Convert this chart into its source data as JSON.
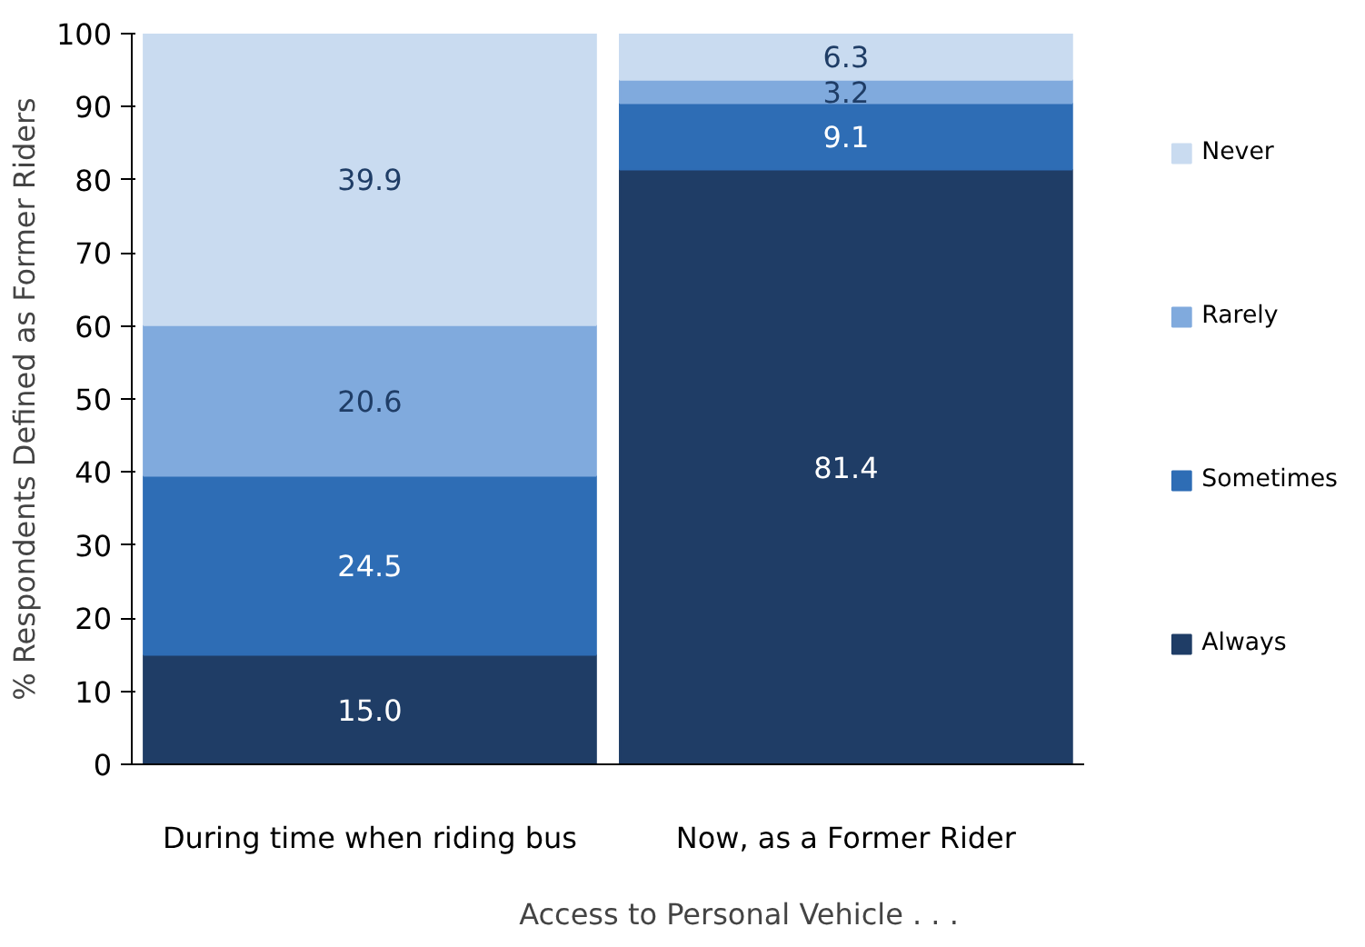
{
  "chart_data": {
    "type": "bar",
    "stacked": true,
    "xlabel": "Access to Personal Vehicle . . .",
    "ylabel": "% Respondents Defined as Former Riders",
    "categories": [
      "During time when riding bus",
      "Now, as a Former Rider"
    ],
    "series": [
      {
        "name": "Always",
        "color": "#1f3d66",
        "values": [
          15.0,
          81.4
        ],
        "value_labels": [
          "15.0",
          "81.4"
        ]
      },
      {
        "name": "Sometimes",
        "color": "#2e6db5",
        "values": [
          24.5,
          9.1
        ],
        "value_labels": [
          "24.5",
          "9.1"
        ]
      },
      {
        "name": "Rarely",
        "color": "#80aadd",
        "values": [
          20.6,
          3.2
        ],
        "value_labels": [
          "20.6",
          "3.2"
        ]
      },
      {
        "name": "Never",
        "color": "#c9dbf0",
        "values": [
          39.9,
          6.3
        ],
        "value_labels": [
          "39.9",
          "6.3"
        ]
      }
    ],
    "ylim": [
      0,
      100
    ],
    "yticks": [
      0,
      10,
      20,
      30,
      40,
      50,
      60,
      70,
      80,
      90,
      100
    ],
    "grid": false,
    "legend": "right"
  }
}
